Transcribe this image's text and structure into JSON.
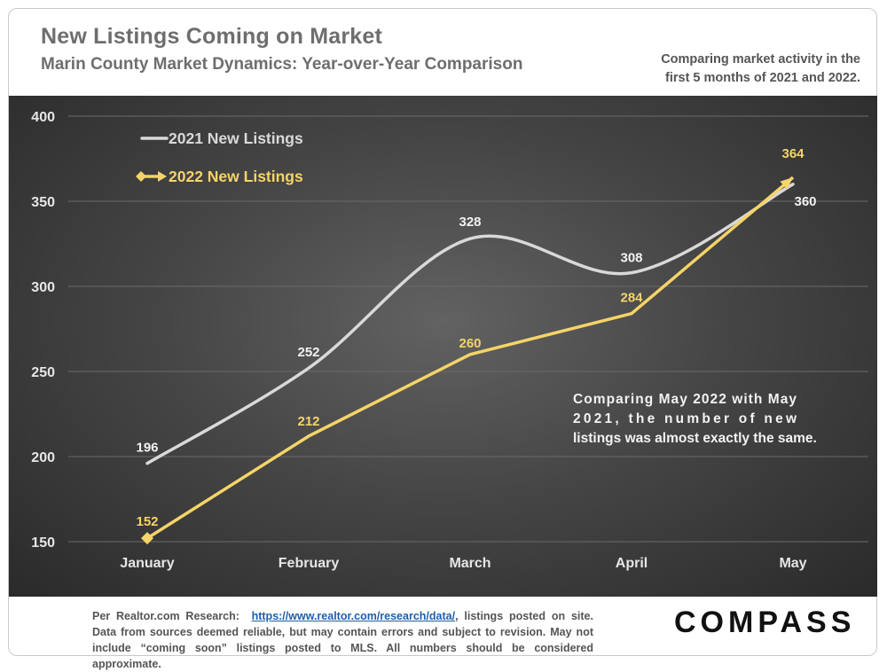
{
  "header": {
    "title": "New Listings Coming on Market",
    "subtitle": "Marin County Market Dynamics: Year-over-Year Comparison",
    "note": "Comparing market activity in the first 5 months of 2021 and 2022."
  },
  "annotation": "Comparing May 2022 with May 2021, the number of new listings was almost exactly the same.",
  "footer": {
    "prefix": "Per Realtor.com Research:",
    "link_text": "https://www.realtor.com/research/data/",
    "text": ", listings posted on site. Data from sources deemed reliable, but may contain errors and subject to revision. May not include “coming soon” listings posted to MLS. All numbers should be considered approximate."
  },
  "brand": "COMPASS",
  "colors": {
    "series_2021": "#d9d9d9",
    "series_2022": "#f5d468",
    "grid": "#6a6a6a",
    "axis_text": "#e6e6e6"
  },
  "chart_data": {
    "type": "line",
    "title": "New Listings Coming on Market",
    "categories": [
      "January",
      "February",
      "March",
      "April",
      "May"
    ],
    "ylim": [
      150,
      400
    ],
    "yticks": [
      150,
      200,
      250,
      300,
      350,
      400
    ],
    "series": [
      {
        "name": "2021 New Listings",
        "values": [
          196,
          252,
          328,
          308,
          360
        ],
        "color": "#d9d9d9",
        "smooth": true
      },
      {
        "name": "2022 New Listings",
        "values": [
          152,
          212,
          260,
          284,
          364
        ],
        "color": "#f5d468",
        "smooth": false
      }
    ],
    "legend_position": "top-left",
    "grid": true
  }
}
